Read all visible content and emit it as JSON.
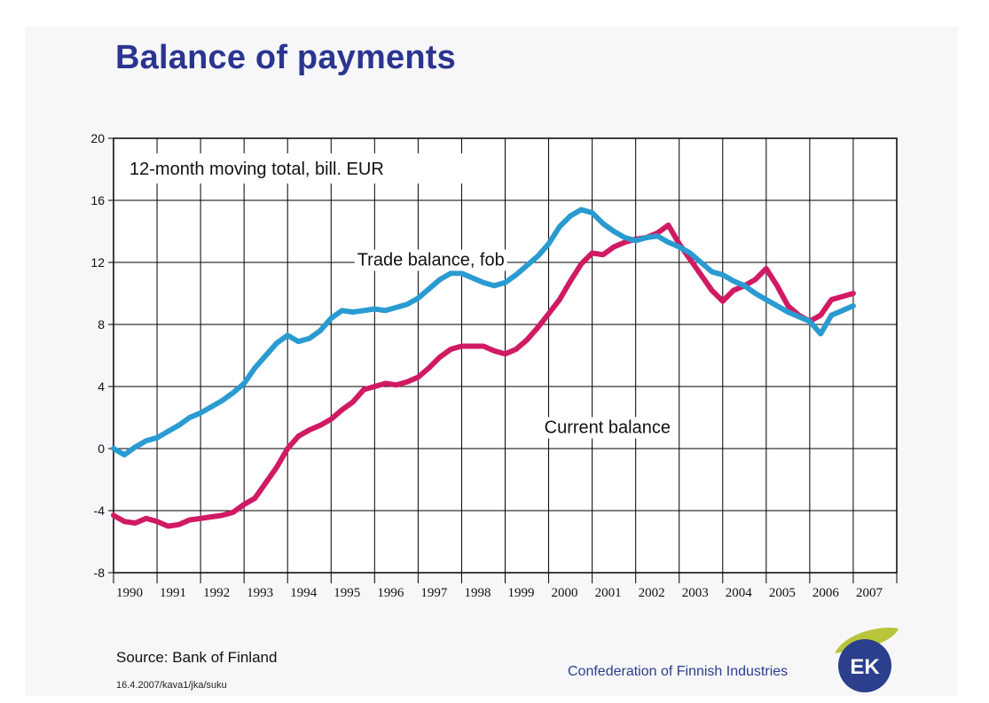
{
  "slide_title": "Balance of payments",
  "source": "Source: Bank of Finland",
  "footnote": "16.4.2007/kava1/jka/suku",
  "organization": "Confederation of Finnish Industries",
  "logo_text": "EK",
  "colors": {
    "title": "#2b3590",
    "trade_series": "#2a9bd0",
    "current_series": "#d01a63",
    "logo_blue": "#2b3f8c",
    "logo_green": "#b9c43a"
  },
  "chart_data": {
    "type": "line",
    "title": "",
    "inner_label": "12-month moving total, bill. EUR",
    "xlabel": "",
    "ylabel": "",
    "ylim": [
      -8,
      20
    ],
    "yticks": [
      -8,
      -4,
      0,
      4,
      8,
      12,
      16,
      20
    ],
    "xlim": [
      1990,
      2007
    ],
    "xticks": [
      "1990",
      "1991",
      "1992",
      "1993",
      "1994",
      "1995",
      "1996",
      "1997",
      "1998",
      "1999",
      "2000",
      "2001",
      "2002",
      "2003",
      "2004",
      "2005",
      "2006",
      "2007"
    ],
    "grid": true,
    "series": [
      {
        "name": "Trade balance, fob",
        "color": "#2a9bd0",
        "x": [
          1990.0,
          1990.25,
          1990.5,
          1990.75,
          1991.0,
          1991.25,
          1991.5,
          1991.75,
          1992.0,
          1992.25,
          1992.5,
          1992.75,
          1993.0,
          1993.25,
          1993.5,
          1993.75,
          1994.0,
          1994.25,
          1994.5,
          1994.75,
          1995.0,
          1995.25,
          1995.5,
          1995.75,
          1996.0,
          1996.25,
          1996.5,
          1996.75,
          1997.0,
          1997.25,
          1997.5,
          1997.75,
          1998.0,
          1998.25,
          1998.5,
          1998.75,
          1999.0,
          1999.25,
          1999.5,
          1999.75,
          2000.0,
          2000.25,
          2000.5,
          2000.75,
          2001.0,
          2001.25,
          2001.5,
          2001.75,
          2002.0,
          2002.25,
          2002.5,
          2002.75,
          2003.0,
          2003.25,
          2003.5,
          2003.75,
          2004.0,
          2004.25,
          2004.5,
          2004.75,
          2005.0,
          2005.25,
          2005.5,
          2005.75,
          2006.0,
          2006.25,
          2006.5,
          2006.75,
          2007.0
        ],
        "y": [
          0.0,
          -0.4,
          0.1,
          0.5,
          0.7,
          1.1,
          1.5,
          2.0,
          2.3,
          2.7,
          3.1,
          3.6,
          4.2,
          5.2,
          6.0,
          6.8,
          7.3,
          6.9,
          7.1,
          7.6,
          8.4,
          8.9,
          8.8,
          8.9,
          9.0,
          8.9,
          9.1,
          9.3,
          9.7,
          10.3,
          10.9,
          11.3,
          11.3,
          11.0,
          10.7,
          10.5,
          10.7,
          11.2,
          11.8,
          12.4,
          13.2,
          14.3,
          15.0,
          15.4,
          15.2,
          14.5,
          14.0,
          13.6,
          13.4,
          13.6,
          13.7,
          13.3,
          13.0,
          12.6,
          12.0,
          11.4,
          11.2,
          10.8,
          10.5,
          10.0,
          9.6,
          9.2,
          8.8,
          8.5,
          8.2,
          7.4,
          8.6,
          8.9,
          9.2
        ]
      },
      {
        "name": "Current balance",
        "color": "#d01a63",
        "x": [
          1990.0,
          1990.25,
          1990.5,
          1990.75,
          1991.0,
          1991.25,
          1991.5,
          1991.75,
          1992.0,
          1992.25,
          1992.5,
          1992.75,
          1993.0,
          1993.25,
          1993.5,
          1993.75,
          1994.0,
          1994.25,
          1994.5,
          1994.75,
          1995.0,
          1995.25,
          1995.5,
          1995.75,
          1996.0,
          1996.25,
          1996.5,
          1996.75,
          1997.0,
          1997.25,
          1997.5,
          1997.75,
          1998.0,
          1998.25,
          1998.5,
          1998.75,
          1999.0,
          1999.25,
          1999.5,
          1999.75,
          2000.0,
          2000.25,
          2000.5,
          2000.75,
          2001.0,
          2001.25,
          2001.5,
          2001.75,
          2002.0,
          2002.25,
          2002.5,
          2002.75,
          2003.0,
          2003.25,
          2003.5,
          2003.75,
          2004.0,
          2004.25,
          2004.5,
          2004.75,
          2005.0,
          2005.25,
          2005.5,
          2005.75,
          2006.0,
          2006.25,
          2006.5,
          2006.75,
          2007.0
        ],
        "y": [
          -4.3,
          -4.7,
          -4.8,
          -4.5,
          -4.7,
          -5.0,
          -4.9,
          -4.6,
          -4.5,
          -4.4,
          -4.3,
          -4.1,
          -3.6,
          -3.2,
          -2.2,
          -1.2,
          0.0,
          0.8,
          1.2,
          1.5,
          1.9,
          2.5,
          3.0,
          3.8,
          4.0,
          4.2,
          4.1,
          4.3,
          4.6,
          5.2,
          5.9,
          6.4,
          6.6,
          6.6,
          6.6,
          6.3,
          6.1,
          6.4,
          7.0,
          7.8,
          8.7,
          9.6,
          10.8,
          11.9,
          12.6,
          12.5,
          13.0,
          13.3,
          13.5,
          13.6,
          13.9,
          14.4,
          13.2,
          12.2,
          11.2,
          10.2,
          9.5,
          10.2,
          10.5,
          10.9,
          11.6,
          10.5,
          9.2,
          8.6,
          8.2,
          8.6,
          9.6,
          9.8,
          10.0
        ]
      }
    ],
    "annotations": [
      {
        "text": "Trade balance, fob",
        "x": 1995.6,
        "y": 11.8
      },
      {
        "text": "Current balance",
        "x": 1999.9,
        "y": 1.0
      }
    ]
  }
}
